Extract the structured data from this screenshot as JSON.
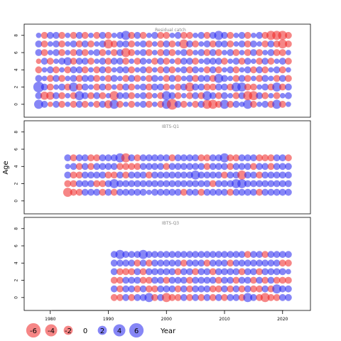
{
  "chart_data": {
    "type": "scatter",
    "plot_kind": "bubble residual plot",
    "ylabel": "Age",
    "xlabel": "Year",
    "x_ticks": [
      1980,
      1990,
      2000,
      2010,
      2020
    ],
    "y_ticks": [
      0,
      2,
      4,
      6,
      8
    ],
    "xlim": [
      1975.5,
      2024.8
    ],
    "positive_color": "#2222ee",
    "negative_color": "#ee2222",
    "legend": {
      "values": [
        -6,
        -4,
        -2,
        0,
        2,
        4,
        6
      ],
      "labels": [
        "-6",
        "-4",
        "-2",
        "0",
        "2",
        "4",
        "6"
      ],
      "title": "Year"
    },
    "panels": [
      {
        "title": "Residual catch",
        "ylim": [
          -1.5,
          9.3
        ],
        "years": [
          1978,
          2021
        ],
        "ages": [
          0,
          1,
          2,
          3,
          4,
          5,
          6,
          7,
          8
        ],
        "residuals": [
          [
            2,
            1,
            -0.5,
            1,
            -1,
            0.5,
            -1,
            1,
            -1,
            0.5,
            -1,
            1,
            -1.5,
            2,
            -1,
            0.5,
            -1,
            0.5,
            1,
            -1,
            0.5,
            -1,
            2,
            -3,
            1,
            -1,
            0.5,
            -1,
            1,
            -2,
            -2,
            -1,
            2,
            -1,
            1,
            0.5,
            2,
            -1,
            0.5,
            1,
            -1,
            2,
            -1,
            0.5
          ],
          [
            1,
            -1.5,
            -1.5,
            1,
            -1,
            0.5,
            -1,
            2,
            1,
            -1,
            1,
            -1,
            0.5,
            -2,
            1,
            1,
            -1,
            0.5,
            1,
            -1,
            0.5,
            -1,
            2,
            1,
            -1,
            0.5,
            -1,
            1,
            -1,
            2,
            1,
            -1,
            1,
            0.5,
            -1,
            1,
            -2,
            -2,
            1,
            -1,
            0.5,
            -1,
            0.5,
            1
          ],
          [
            3,
            1,
            -1,
            0.5,
            1,
            -1,
            2,
            -1,
            1,
            0.5,
            -1,
            1,
            -1,
            0.5,
            -1,
            1,
            -1,
            0.5,
            1,
            -1,
            1,
            1,
            -1,
            0.5,
            -1,
            1,
            -2,
            1,
            1,
            -1,
            -1,
            1,
            1,
            -1,
            2,
            2,
            -1,
            -1,
            0.5,
            1,
            -1,
            2,
            -1,
            1
          ],
          [
            1,
            0.5,
            -1,
            1,
            -1,
            0.5,
            1,
            -1,
            1,
            1,
            -1,
            0.5,
            -1,
            1,
            0.5,
            -1,
            1,
            -1,
            0.5,
            -1,
            1,
            0.5,
            -1,
            1,
            -1,
            0.5,
            1,
            -1,
            1,
            1,
            -1,
            2,
            1,
            0.5,
            -1,
            1,
            -1,
            0.5,
            -1,
            1,
            0.5,
            -1,
            1,
            -1
          ],
          [
            -1,
            0.5,
            1,
            -1,
            0.5,
            -1,
            1,
            1,
            -1,
            0.5,
            -1,
            1,
            -1,
            0.5,
            1,
            1,
            -1,
            0.5,
            1,
            -1,
            0.5,
            -1,
            1,
            -1,
            0.5,
            1,
            -1,
            1,
            0.5,
            -1,
            1,
            -1,
            0.5,
            1,
            -1,
            0.5,
            1,
            -1,
            1,
            -1,
            0.5,
            1,
            -1,
            0.5
          ],
          [
            -0.5,
            1,
            -1,
            0.5,
            1,
            1.5,
            -1,
            1,
            1,
            -1,
            0.5,
            1,
            -1,
            1,
            1,
            -1,
            0.5,
            -1,
            1,
            0.5,
            -1,
            1,
            -1,
            0.5,
            -1,
            1,
            1,
            -1,
            0.5,
            1,
            1,
            1,
            -1,
            0.5,
            1,
            -1,
            1,
            0.5,
            -1,
            1,
            -1,
            0.5,
            1,
            -1
          ],
          [
            1,
            -1,
            0.5,
            1,
            -1,
            0.5,
            -1,
            1,
            -1,
            0.5,
            1,
            -1,
            0.5,
            -1,
            1,
            -2,
            -1,
            0.5,
            1,
            -1,
            0.5,
            -1,
            1,
            -1,
            0.5,
            1,
            -1,
            0.5,
            1,
            -1,
            1,
            -1,
            0.5,
            1,
            -1,
            0.5,
            -1,
            1,
            -1,
            0.5,
            1,
            -1,
            -1,
            0.5
          ],
          [
            1,
            -1,
            0.5,
            1,
            -1,
            0.5,
            1,
            -1,
            1,
            -1,
            0.5,
            1,
            -2,
            -1,
            1,
            1,
            -1,
            0.5,
            1,
            -1,
            0.5,
            -1,
            1,
            -1,
            0.5,
            -2,
            1,
            -1,
            0.5,
            1,
            -1,
            1,
            1,
            -1,
            0.5,
            1,
            -1,
            1,
            0.5,
            -1,
            1,
            -1,
            -2,
            -1
          ],
          [
            0.5,
            -1,
            1,
            1,
            -1,
            0.5,
            -1,
            1,
            -1,
            0.5,
            -1,
            1,
            -1,
            0.5,
            1,
            2,
            -1,
            1,
            -1,
            0.5,
            1,
            -1,
            -1,
            0.5,
            1,
            -1,
            -1,
            0.5,
            1,
            -1,
            1,
            2,
            1,
            -1,
            0.5,
            1,
            -1,
            0.5,
            1,
            -1,
            -2,
            -2,
            -2,
            -1
          ]
        ]
      },
      {
        "title": "IBTS-Q1",
        "ylim": [
          -1.5,
          9.3
        ],
        "years": [
          1983,
          2021
        ],
        "ages": [
          1,
          2,
          3,
          4,
          5
        ],
        "residuals": [
          [
            -2,
            -1,
            -1,
            1,
            1,
            1,
            -1,
            1,
            -1,
            1,
            1,
            1,
            1,
            1,
            0.5,
            1,
            1,
            1,
            1,
            1,
            -1,
            1,
            1,
            -1,
            1,
            1,
            1,
            1,
            -1,
            1,
            1,
            1,
            1,
            -1,
            1,
            1,
            1,
            1,
            1
          ],
          [
            -1,
            -1,
            1,
            1,
            1,
            -1,
            -1,
            1,
            2,
            1,
            1,
            1,
            1,
            1,
            1,
            1,
            1,
            1,
            1,
            1,
            1,
            1,
            1,
            1,
            1,
            -1,
            1,
            1,
            1,
            2,
            2,
            1,
            1,
            1,
            1,
            1,
            1,
            1,
            1
          ],
          [
            1,
            -1,
            -1,
            1,
            1,
            1,
            1,
            -1,
            -1,
            1,
            -1,
            1,
            1,
            1,
            -1,
            1,
            1,
            1,
            1,
            1,
            1,
            1,
            2,
            1,
            1,
            1,
            1,
            -1,
            1,
            1,
            -2,
            1,
            1,
            -1,
            1,
            1,
            1,
            1,
            1
          ],
          [
            0.5,
            1,
            -1,
            1,
            -1,
            1,
            1,
            1,
            1,
            -1,
            -1,
            -1,
            -1,
            1,
            1,
            1,
            1,
            -1,
            1,
            1,
            1,
            1,
            1,
            1,
            -1,
            1,
            1,
            1,
            -1,
            1,
            1,
            1,
            -1,
            1,
            1,
            -1,
            1,
            1,
            1
          ],
          [
            1,
            -1,
            1,
            1,
            -1,
            -1,
            1,
            1,
            1,
            2,
            -2,
            1,
            -1,
            1,
            1,
            1,
            1,
            1,
            -1,
            1,
            1,
            1,
            1,
            -1,
            -1,
            1,
            1,
            2,
            -1,
            -1,
            1,
            1,
            1,
            -1,
            -1,
            -1,
            1,
            1,
            -1
          ]
        ]
      },
      {
        "title": "IBTS-Q3",
        "ylim": [
          -1.5,
          9.3
        ],
        "years": [
          1991,
          2021
        ],
        "ages": [
          0,
          1,
          2,
          3,
          4,
          5
        ],
        "residuals": [
          [
            -1,
            -1,
            1,
            -1,
            1,
            1,
            2,
            -1,
            1,
            -2,
            -1,
            -1,
            1,
            -1,
            1,
            -1,
            1,
            -1,
            1,
            -1,
            1,
            1,
            -1,
            2,
            1,
            -1,
            -2,
            -1,
            -1,
            1,
            1
          ],
          [
            1,
            -1,
            1,
            1,
            -1,
            1,
            -1,
            -1,
            1,
            1,
            1,
            -1,
            1,
            -1,
            1,
            1,
            1,
            -1,
            -1,
            1,
            -1,
            1,
            -1,
            1,
            -1,
            -1,
            1,
            -1,
            2,
            1,
            1
          ],
          [
            -1,
            -1,
            1,
            1,
            1,
            -1,
            -1,
            1,
            1,
            -1,
            1,
            1,
            1,
            -1,
            1,
            1,
            1,
            1,
            -1,
            1,
            1,
            -1,
            1,
            1,
            -1,
            1,
            -1,
            1,
            -1,
            -1,
            -1
          ],
          [
            1,
            -1,
            -1,
            -1,
            1,
            -1,
            1,
            1,
            1,
            1,
            1,
            -1,
            1,
            1,
            -1,
            1,
            1,
            -1,
            1,
            1,
            1,
            1,
            -1,
            1,
            1,
            -1,
            1,
            1,
            1,
            1,
            0.5
          ],
          [
            1,
            1,
            1,
            1,
            -1,
            1,
            -1,
            1,
            1,
            1,
            1,
            1,
            -1,
            1,
            1,
            1,
            -1,
            1,
            1,
            1,
            -1,
            1,
            1,
            1,
            1,
            1,
            1,
            1,
            1,
            -1,
            -1
          ],
          [
            1,
            2,
            1,
            1,
            1,
            2,
            1,
            1,
            1,
            1,
            1,
            1,
            1,
            1,
            1,
            1,
            1,
            1,
            1,
            1,
            1,
            1,
            1,
            -1,
            1,
            1,
            -1,
            1,
            1,
            1,
            1
          ]
        ]
      }
    ]
  }
}
